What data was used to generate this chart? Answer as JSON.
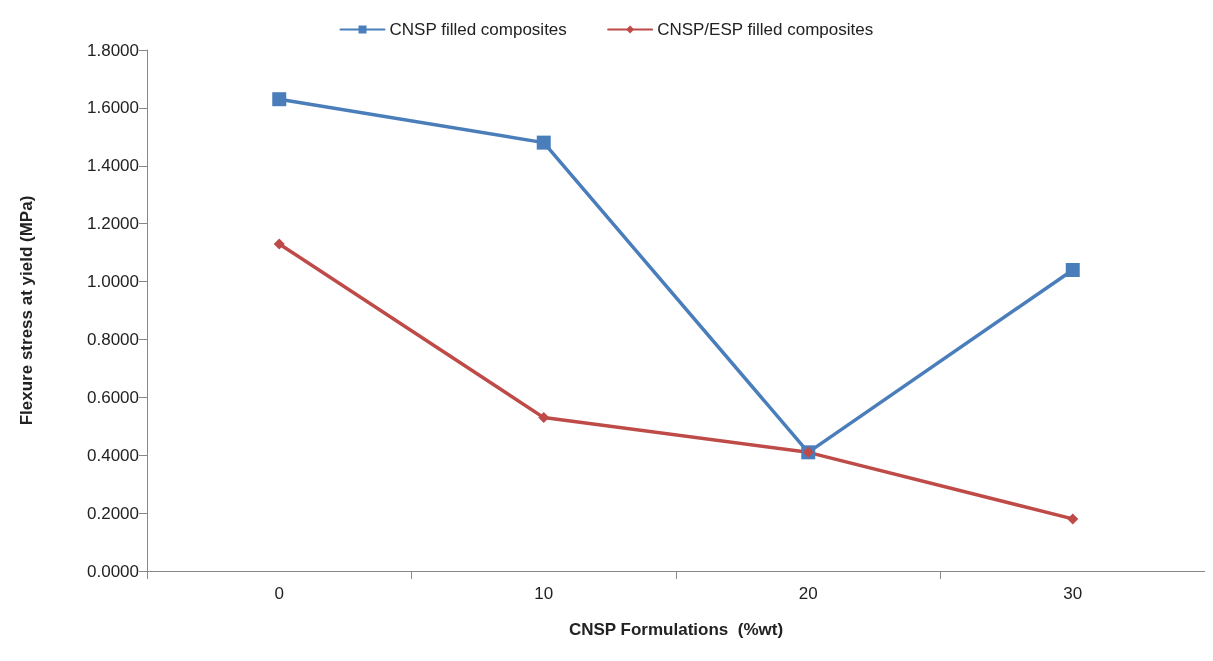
{
  "chart_data": {
    "type": "line",
    "xlabel": "CNSP Formulations  (%wt)",
    "ylabel": "Flexure stress at yield (MPa)",
    "categories": [
      "0",
      "10",
      "20",
      "30"
    ],
    "series": [
      {
        "name": "CNSP filled composites",
        "color": "#4a7ebb",
        "marker": "square",
        "values": [
          1.63,
          1.48,
          0.41,
          1.04
        ]
      },
      {
        "name": "CNSP/ESP filled composites",
        "color": "#be4b48",
        "marker": "diamond",
        "values": [
          1.13,
          0.53,
          0.41,
          0.18
        ]
      }
    ],
    "ylim": [
      0,
      1.8
    ],
    "yticks": [
      {
        "value": 0,
        "label": "0.0000"
      },
      {
        "value": 0.2,
        "label": "0.2000"
      },
      {
        "value": 0.4,
        "label": "0.4000"
      },
      {
        "value": 0.6,
        "label": "0.6000"
      },
      {
        "value": 0.8,
        "label": "0.8000"
      },
      {
        "value": 1,
        "label": "1.0000"
      },
      {
        "value": 1.2,
        "label": "1.2000"
      },
      {
        "value": 1.4,
        "label": "1.4000"
      },
      {
        "value": 1.6,
        "label": "1.6000"
      },
      {
        "value": 1.8,
        "label": "1.8000"
      }
    ],
    "grid": false,
    "legend": "top",
    "line_style": "solid"
  }
}
